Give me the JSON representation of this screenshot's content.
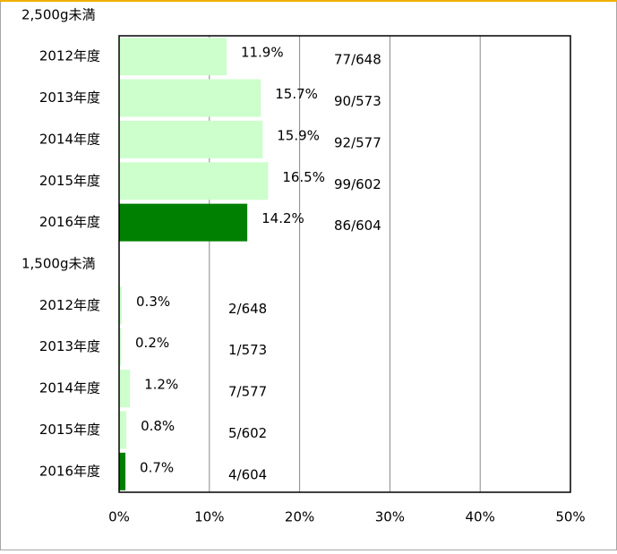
{
  "chart_data": {
    "type": "bar",
    "orientation": "horizontal",
    "categories": [
      "2,500g未満",
      "2012年度",
      "2013年度",
      "2014年度",
      "2015年度",
      "2016年度",
      "1,500g未満",
      "2012年度",
      "2013年度",
      "2014年度",
      "2015年度",
      "2016年度"
    ],
    "values": [
      null,
      11.9,
      15.7,
      15.9,
      16.5,
      14.2,
      null,
      0.3,
      0.2,
      1.2,
      0.8,
      0.7
    ],
    "value_labels": [
      null,
      "11.9%",
      "15.7%",
      "15.9%",
      "16.5%",
      "14.2%",
      null,
      "0.3%",
      "0.2%",
      "1.2%",
      "0.8%",
      "0.7%"
    ],
    "ratio_labels": [
      null,
      "77/648",
      "90/573",
      "92/577",
      "99/602",
      "86/604",
      null,
      "2/648",
      "1/573",
      "7/577",
      "5/602",
      "4/604"
    ],
    "colors": [
      null,
      "#ccffcc",
      "#ccffcc",
      "#ccffcc",
      "#ccffcc",
      "#008000",
      null,
      "#ccffcc",
      "#ccffcc",
      "#ccffcc",
      "#ccffcc",
      "#008000"
    ],
    "xlim": [
      0,
      50
    ],
    "xticks": [
      {
        "value": 0,
        "label": "0%"
      },
      {
        "value": 10,
        "label": "10%"
      },
      {
        "value": 20,
        "label": "20%"
      },
      {
        "value": 30,
        "label": "30%"
      },
      {
        "value": 40,
        "label": "40%"
      },
      {
        "value": 50,
        "label": "50%"
      }
    ],
    "grid": true
  }
}
